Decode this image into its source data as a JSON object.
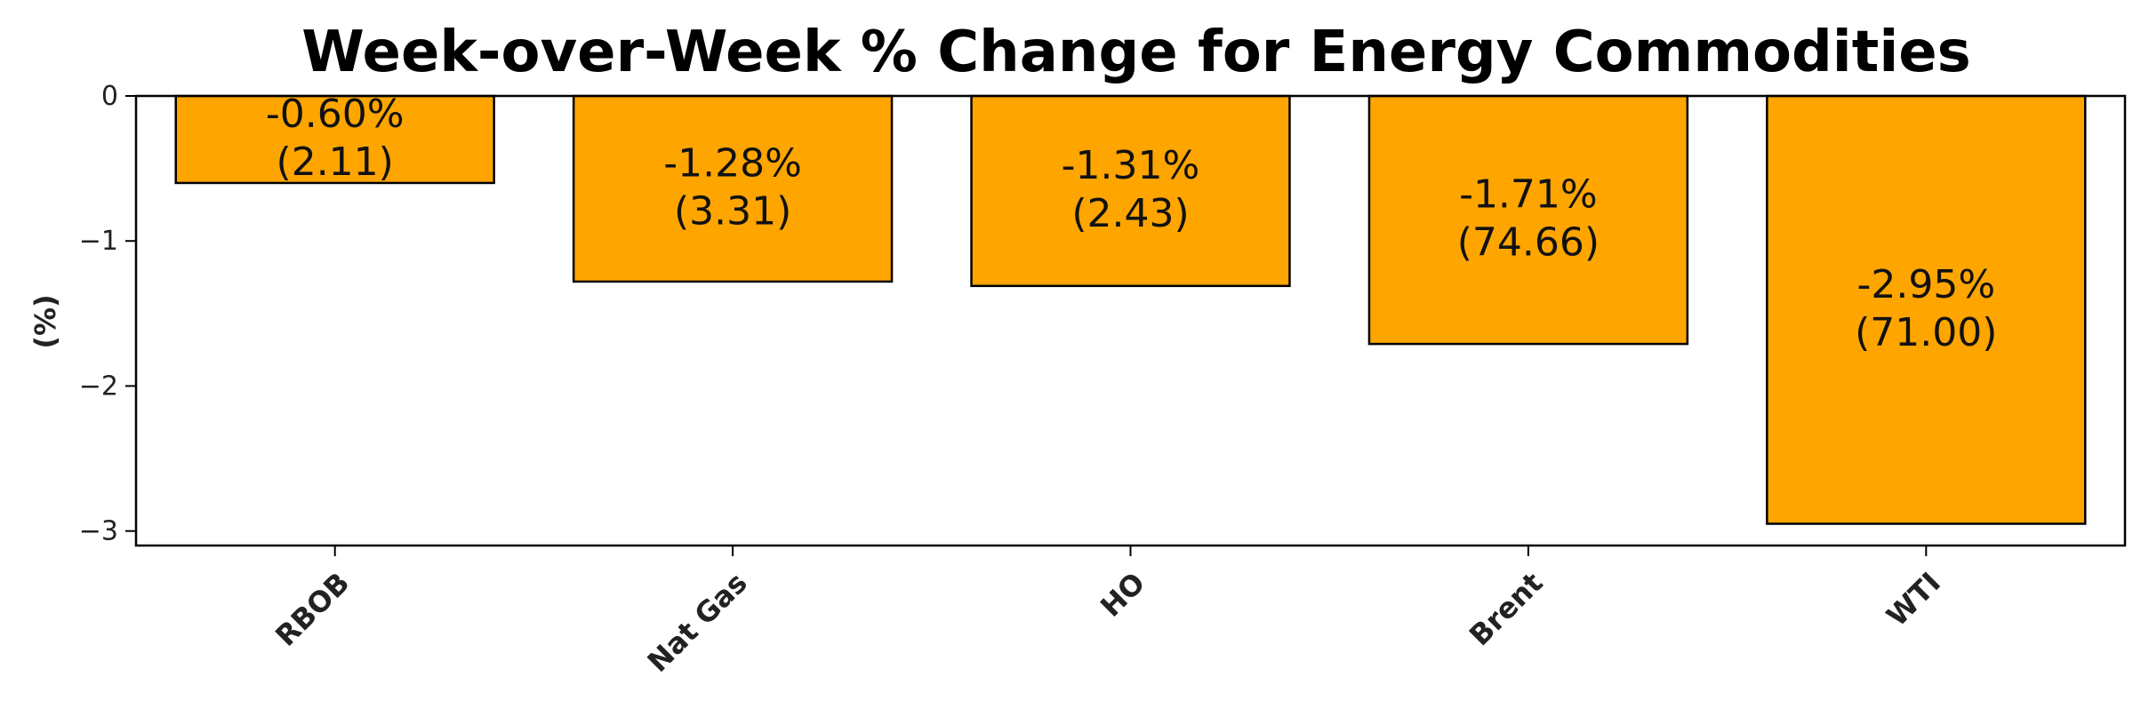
{
  "chart_data": {
    "type": "bar",
    "title": "Week-over-Week % Change for Energy Commodities",
    "xlabel": "",
    "ylabel": "(%)",
    "categories": [
      "RBOB",
      "Nat Gas",
      "HO",
      "Brent",
      "WTI"
    ],
    "values": [
      -0.6,
      -1.28,
      -1.31,
      -1.71,
      -2.95
    ],
    "bar_labels": [
      [
        "-0.60%",
        "(2.11)"
      ],
      [
        "-1.28%",
        "(3.31)"
      ],
      [
        "-1.31%",
        "(2.43)"
      ],
      [
        "-1.71%",
        "(74.66)"
      ],
      [
        "-2.95%",
        "(71.00)"
      ]
    ],
    "yticks": [
      0,
      -1,
      -2,
      -3
    ],
    "ytick_labels": [
      "0",
      "−1",
      "−2",
      "−3"
    ],
    "ylim": [
      -3.1,
      0
    ],
    "grid": false,
    "legend": "none",
    "colors": {
      "bar": "#FFA500",
      "edge": "#000000"
    }
  }
}
